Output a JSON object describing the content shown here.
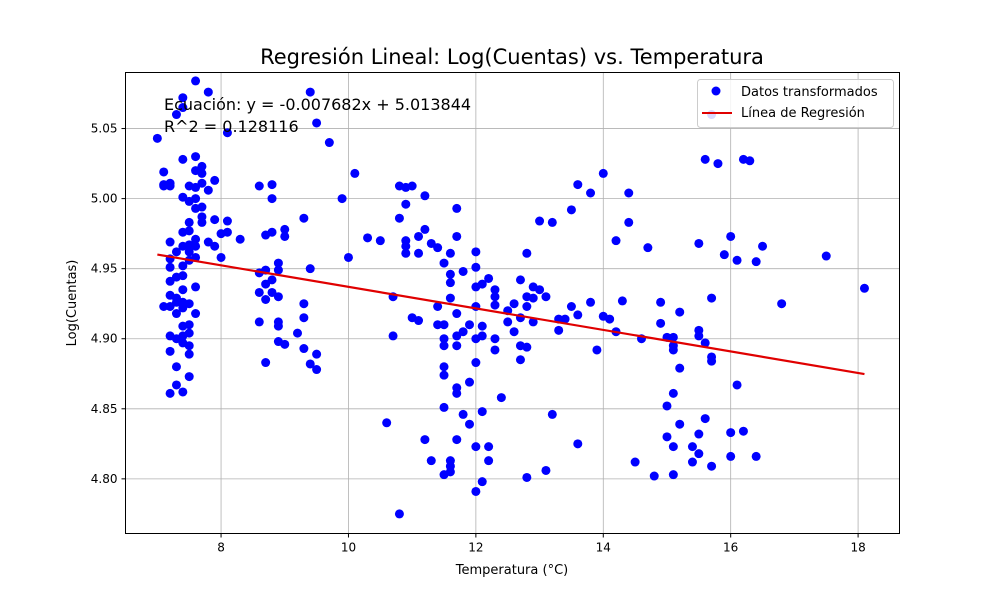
{
  "chart_data": {
    "type": "scatter",
    "title": "Regresión Lineal: Log(Cuentas) vs. Temperatura",
    "xlabel": "Temperatura (°C)",
    "ylabel": "Log(Cuentas)",
    "xlim": [
      6.5,
      18.65
    ],
    "ylim": [
      4.761,
      5.09
    ],
    "xticks": [
      8,
      10,
      12,
      14,
      16,
      18
    ],
    "yticks": [
      4.8,
      4.85,
      4.9,
      4.95,
      5.0,
      5.05
    ],
    "xtick_labels": [
      "8",
      "10",
      "12",
      "14",
      "16",
      "18"
    ],
    "ytick_labels": [
      "4.80",
      "4.85",
      "4.90",
      "4.95",
      "5.00",
      "5.05"
    ],
    "grid": true,
    "legend_position": "top-right",
    "annotation_lines": [
      "Ecuación: y = -0.007682x + 5.013844",
      "R^2 = 0.128116"
    ],
    "series": [
      {
        "name": "Datos transformados",
        "kind": "scatter",
        "color": "#0000ff",
        "points": [
          [
            7.0,
            5.043
          ],
          [
            7.1,
            5.01
          ],
          [
            7.1,
            5.019
          ],
          [
            7.1,
            4.923
          ],
          [
            7.1,
            5.009
          ],
          [
            7.2,
            5.011
          ],
          [
            7.2,
            5.009
          ],
          [
            7.2,
            4.969
          ],
          [
            7.2,
            4.957
          ],
          [
            7.2,
            4.951
          ],
          [
            7.2,
            4.941
          ],
          [
            7.2,
            4.931
          ],
          [
            7.2,
            4.923
          ],
          [
            7.2,
            4.902
          ],
          [
            7.2,
            4.891
          ],
          [
            7.2,
            4.861
          ],
          [
            7.3,
            4.944
          ],
          [
            7.3,
            4.929
          ],
          [
            7.3,
            4.926
          ],
          [
            7.3,
            4.918
          ],
          [
            7.3,
            4.9
          ],
          [
            7.3,
            4.88
          ],
          [
            7.3,
            4.867
          ],
          [
            7.3,
            5.06
          ],
          [
            7.3,
            4.962
          ],
          [
            7.4,
            5.065
          ],
          [
            7.4,
            5.028
          ],
          [
            7.4,
            5.001
          ],
          [
            7.4,
            4.976
          ],
          [
            7.4,
            4.966
          ],
          [
            7.4,
            4.952
          ],
          [
            7.4,
            4.945
          ],
          [
            7.4,
            4.935
          ],
          [
            7.4,
            4.926
          ],
          [
            7.4,
            4.922
          ],
          [
            7.4,
            4.909
          ],
          [
            7.4,
            4.902
          ],
          [
            7.4,
            4.897
          ],
          [
            7.4,
            4.862
          ],
          [
            7.4,
            5.072
          ],
          [
            7.5,
            5.009
          ],
          [
            7.5,
            4.998
          ],
          [
            7.5,
            4.983
          ],
          [
            7.5,
            4.977
          ],
          [
            7.5,
            4.967
          ],
          [
            7.5,
            4.962
          ],
          [
            7.5,
            4.956
          ],
          [
            7.5,
            4.925
          ],
          [
            7.5,
            4.91
          ],
          [
            7.5,
            4.904
          ],
          [
            7.5,
            4.895
          ],
          [
            7.5,
            4.889
          ],
          [
            7.5,
            4.873
          ],
          [
            7.6,
            5.084
          ],
          [
            7.6,
            5.03
          ],
          [
            7.6,
            5.02
          ],
          [
            7.6,
            5.008
          ],
          [
            7.6,
            5.0
          ],
          [
            7.6,
            4.993
          ],
          [
            7.6,
            4.971
          ],
          [
            7.6,
            4.966
          ],
          [
            7.6,
            4.958
          ],
          [
            7.6,
            4.937
          ],
          [
            7.6,
            4.918
          ],
          [
            7.7,
            5.023
          ],
          [
            7.7,
            5.018
          ],
          [
            7.7,
            5.011
          ],
          [
            7.7,
            4.994
          ],
          [
            7.7,
            4.987
          ],
          [
            7.7,
            4.983
          ],
          [
            7.8,
            5.076
          ],
          [
            7.8,
            5.006
          ],
          [
            7.8,
            4.969
          ],
          [
            7.9,
            5.013
          ],
          [
            7.9,
            4.985
          ],
          [
            7.9,
            4.966
          ],
          [
            8.0,
            4.975
          ],
          [
            8.0,
            4.958
          ],
          [
            8.1,
            5.047
          ],
          [
            8.1,
            4.984
          ],
          [
            8.1,
            4.976
          ],
          [
            8.3,
            4.971
          ],
          [
            8.6,
            5.009
          ],
          [
            8.6,
            4.947
          ],
          [
            8.6,
            4.933
          ],
          [
            8.6,
            4.912
          ],
          [
            8.7,
            4.949
          ],
          [
            8.7,
            4.974
          ],
          [
            8.7,
            4.939
          ],
          [
            8.7,
            4.928
          ],
          [
            8.7,
            4.883
          ],
          [
            8.8,
            5.01
          ],
          [
            8.8,
            5.0
          ],
          [
            8.8,
            4.976
          ],
          [
            8.8,
            4.942
          ],
          [
            8.8,
            4.933
          ],
          [
            8.9,
            4.954
          ],
          [
            8.9,
            4.949
          ],
          [
            8.9,
            4.93
          ],
          [
            8.9,
            4.912
          ],
          [
            8.9,
            4.909
          ],
          [
            8.9,
            4.898
          ],
          [
            9.0,
            4.978
          ],
          [
            9.0,
            4.973
          ],
          [
            9.0,
            4.896
          ],
          [
            9.2,
            4.904
          ],
          [
            9.3,
            4.986
          ],
          [
            9.3,
            4.925
          ],
          [
            9.3,
            4.915
          ],
          [
            9.3,
            4.893
          ],
          [
            9.4,
            5.076
          ],
          [
            9.4,
            4.95
          ],
          [
            9.4,
            4.882
          ],
          [
            9.5,
            5.054
          ],
          [
            9.5,
            4.889
          ],
          [
            9.5,
            4.878
          ],
          [
            9.7,
            5.04
          ],
          [
            9.9,
            5.0
          ],
          [
            10.0,
            4.958
          ],
          [
            10.1,
            5.018
          ],
          [
            10.3,
            4.972
          ],
          [
            10.5,
            4.97
          ],
          [
            10.6,
            4.84
          ],
          [
            10.7,
            4.93
          ],
          [
            10.7,
            4.902
          ],
          [
            10.8,
            5.009
          ],
          [
            10.8,
            4.986
          ],
          [
            10.8,
            4.775
          ],
          [
            10.9,
            5.008
          ],
          [
            10.9,
            4.996
          ],
          [
            10.9,
            4.97
          ],
          [
            10.9,
            4.966
          ],
          [
            10.9,
            4.961
          ],
          [
            11.0,
            5.009
          ],
          [
            11.0,
            4.915
          ],
          [
            11.1,
            4.973
          ],
          [
            11.1,
            4.961
          ],
          [
            11.1,
            4.913
          ],
          [
            11.2,
            5.002
          ],
          [
            11.2,
            4.978
          ],
          [
            11.2,
            4.828
          ],
          [
            11.3,
            4.968
          ],
          [
            11.3,
            4.813
          ],
          [
            11.4,
            4.965
          ],
          [
            11.4,
            4.923
          ],
          [
            11.4,
            4.91
          ],
          [
            11.5,
            4.954
          ],
          [
            11.5,
            4.91
          ],
          [
            11.5,
            4.9
          ],
          [
            11.5,
            4.895
          ],
          [
            11.5,
            4.88
          ],
          [
            11.5,
            4.874
          ],
          [
            11.5,
            4.851
          ],
          [
            11.5,
            4.803
          ],
          [
            11.6,
            4.961
          ],
          [
            11.6,
            4.946
          ],
          [
            11.6,
            4.94
          ],
          [
            11.6,
            4.929
          ],
          [
            11.6,
            4.813
          ],
          [
            11.6,
            4.809
          ],
          [
            11.6,
            4.805
          ],
          [
            11.7,
            4.993
          ],
          [
            11.7,
            4.973
          ],
          [
            11.7,
            4.918
          ],
          [
            11.7,
            4.902
          ],
          [
            11.7,
            4.895
          ],
          [
            11.7,
            4.865
          ],
          [
            11.7,
            4.861
          ],
          [
            11.7,
            4.828
          ],
          [
            11.8,
            4.948
          ],
          [
            11.8,
            4.905
          ],
          [
            11.8,
            4.846
          ],
          [
            11.9,
            4.91
          ],
          [
            11.9,
            4.869
          ],
          [
            11.9,
            4.839
          ],
          [
            12.0,
            4.962
          ],
          [
            12.0,
            4.951
          ],
          [
            12.0,
            4.937
          ],
          [
            12.0,
            4.923
          ],
          [
            12.0,
            4.9
          ],
          [
            12.0,
            4.883
          ],
          [
            12.0,
            4.823
          ],
          [
            12.0,
            4.791
          ],
          [
            12.1,
            4.939
          ],
          [
            12.1,
            4.909
          ],
          [
            12.1,
            4.902
          ],
          [
            12.1,
            4.848
          ],
          [
            12.1,
            4.798
          ],
          [
            12.2,
            4.943
          ],
          [
            12.2,
            4.823
          ],
          [
            12.2,
            4.813
          ],
          [
            12.3,
            4.935
          ],
          [
            12.3,
            4.93
          ],
          [
            12.3,
            4.924
          ],
          [
            12.3,
            4.9
          ],
          [
            12.3,
            4.892
          ],
          [
            12.4,
            4.858
          ],
          [
            12.5,
            4.92
          ],
          [
            12.5,
            4.912
          ],
          [
            12.6,
            4.925
          ],
          [
            12.6,
            4.905
          ],
          [
            12.7,
            4.942
          ],
          [
            12.7,
            4.915
          ],
          [
            12.7,
            4.895
          ],
          [
            12.7,
            4.885
          ],
          [
            12.8,
            4.961
          ],
          [
            12.8,
            4.93
          ],
          [
            12.8,
            4.923
          ],
          [
            12.8,
            4.894
          ],
          [
            12.8,
            4.801
          ],
          [
            12.9,
            4.937
          ],
          [
            12.9,
            4.929
          ],
          [
            12.9,
            4.912
          ],
          [
            13.0,
            4.984
          ],
          [
            13.0,
            4.935
          ],
          [
            13.1,
            4.93
          ],
          [
            13.1,
            4.806
          ],
          [
            13.2,
            4.983
          ],
          [
            13.2,
            4.846
          ],
          [
            13.3,
            4.914
          ],
          [
            13.3,
            4.906
          ],
          [
            13.4,
            4.914
          ],
          [
            13.5,
            4.992
          ],
          [
            13.5,
            4.923
          ],
          [
            13.6,
            5.01
          ],
          [
            13.6,
            4.917
          ],
          [
            13.6,
            4.825
          ],
          [
            13.8,
            5.004
          ],
          [
            13.8,
            4.926
          ],
          [
            13.9,
            4.892
          ],
          [
            14.0,
            5.018
          ],
          [
            14.0,
            4.916
          ],
          [
            14.1,
            4.914
          ],
          [
            14.2,
            4.97
          ],
          [
            14.2,
            4.905
          ],
          [
            14.3,
            4.927
          ],
          [
            14.4,
            5.004
          ],
          [
            14.4,
            4.983
          ],
          [
            14.5,
            4.812
          ],
          [
            14.6,
            4.9
          ],
          [
            14.7,
            4.965
          ],
          [
            14.8,
            4.802
          ],
          [
            14.9,
            4.926
          ],
          [
            14.9,
            4.911
          ],
          [
            15.0,
            4.901
          ],
          [
            15.0,
            4.852
          ],
          [
            15.0,
            4.83
          ],
          [
            15.1,
            4.901
          ],
          [
            15.1,
            4.895
          ],
          [
            15.1,
            4.892
          ],
          [
            15.1,
            4.861
          ],
          [
            15.1,
            4.823
          ],
          [
            15.1,
            4.803
          ],
          [
            15.2,
            4.919
          ],
          [
            15.2,
            4.879
          ],
          [
            15.2,
            4.839
          ],
          [
            15.4,
            4.823
          ],
          [
            15.4,
            4.812
          ],
          [
            15.5,
            4.968
          ],
          [
            15.5,
            4.906
          ],
          [
            15.5,
            4.902
          ],
          [
            15.5,
            4.832
          ],
          [
            15.5,
            4.818
          ],
          [
            15.6,
            5.028
          ],
          [
            15.6,
            4.897
          ],
          [
            15.6,
            4.843
          ],
          [
            15.7,
            5.06
          ],
          [
            15.7,
            4.929
          ],
          [
            15.7,
            4.887
          ],
          [
            15.7,
            4.884
          ],
          [
            15.7,
            4.809
          ],
          [
            15.8,
            5.025
          ],
          [
            15.9,
            4.96
          ],
          [
            16.0,
            4.973
          ],
          [
            16.0,
            4.833
          ],
          [
            16.0,
            4.816
          ],
          [
            16.1,
            4.956
          ],
          [
            16.1,
            4.867
          ],
          [
            16.2,
            5.028
          ],
          [
            16.2,
            4.834
          ],
          [
            16.3,
            5.027
          ],
          [
            16.4,
            4.955
          ],
          [
            16.4,
            4.816
          ],
          [
            16.5,
            4.966
          ],
          [
            16.8,
            4.925
          ],
          [
            17.5,
            4.959
          ],
          [
            18.1,
            4.936
          ]
        ]
      },
      {
        "name": "Línea de Regresión",
        "kind": "line",
        "color": "#e00000",
        "slope": -0.007682,
        "intercept": 5.013844,
        "x_range": [
          7.0,
          18.1
        ]
      }
    ]
  }
}
